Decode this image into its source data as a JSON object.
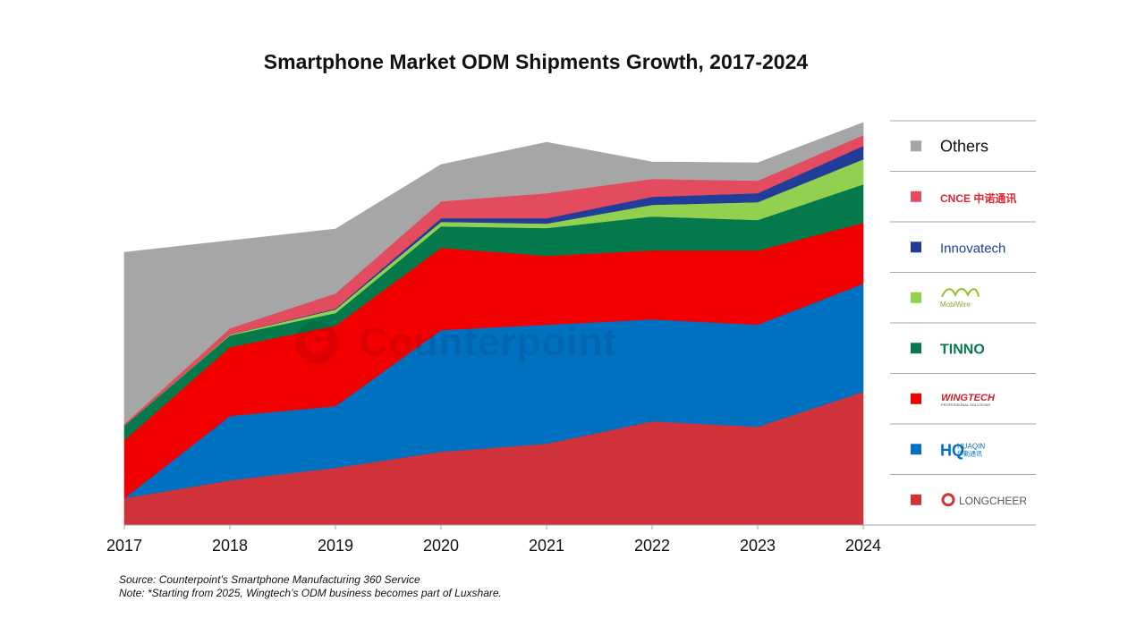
{
  "chart_data": {
    "type": "area",
    "stacked": true,
    "title": "Smartphone Market ODM Shipments Growth, 2017-2024",
    "xlabel": "",
    "ylabel": "",
    "y_axis_shown": false,
    "units_note": "Relative shipment units estimated from stacked band thickness (no y-axis printed)",
    "grid": false,
    "legend_position": "right",
    "categories": [
      "2017",
      "2018",
      "2019",
      "2020",
      "2021",
      "2022",
      "2023",
      "2024"
    ],
    "ylim": [
      0,
      460
    ],
    "series": [
      {
        "name": "Longcheer",
        "legend_logo_text": "LONGCHEER",
        "color": "#D0323A",
        "values": [
          30,
          50,
          64,
          82,
          91,
          116,
          110,
          149
        ]
      },
      {
        "name": "Huaqin",
        "legend_logo_text": "HUAQIN 华勤通讯",
        "color": "#0070C0",
        "values": [
          0,
          72,
          69,
          136,
          133,
          114,
          114,
          121
        ]
      },
      {
        "name": "Wingtech",
        "legend_logo_text": "WINGTECH PROFESSIONAL SOLUTIONS",
        "color": "#F20000",
        "values": [
          65,
          77,
          90,
          92,
          77,
          77,
          83,
          68
        ]
      },
      {
        "name": "Tinno",
        "legend_logo_text": "TINNO",
        "color": "#047A4C",
        "values": [
          16,
          13,
          14,
          24,
          31,
          38,
          34,
          43
        ]
      },
      {
        "name": "MobiWire",
        "legend_logo_text": "MobiWire",
        "color": "#92D050",
        "values": [
          0,
          1,
          4,
          5,
          5,
          13,
          20,
          28
        ]
      },
      {
        "name": "Innovatech",
        "legend_logo_text": "Innovatech",
        "color": "#1F3D99",
        "values": [
          0,
          0,
          1,
          4,
          6,
          9,
          10,
          15
        ]
      },
      {
        "name": "CNCE",
        "legend_logo_text": "CNCE 中诺通讯",
        "color": "#E34B5E",
        "values": [
          2,
          7,
          17,
          19,
          28,
          20,
          14,
          12
        ]
      },
      {
        "name": "Others",
        "legend_logo_text": "Others",
        "color": "#A6A6A6",
        "values": [
          192,
          98,
          72,
          41,
          57,
          19,
          20,
          14
        ]
      }
    ],
    "legend_order": [
      "Others",
      "CNCE",
      "Innovatech",
      "MobiWire",
      "Tinno",
      "Wingtech",
      "Huaqin",
      "Longcheer"
    ],
    "watermark": "Counterpoint"
  },
  "notes": {
    "source": "Source: Counterpoint’s Smartphone Manufacturing 360 Service",
    "note": "Note: *Starting from 2025, Wingtech’s ODM business becomes part of Luxshare."
  }
}
